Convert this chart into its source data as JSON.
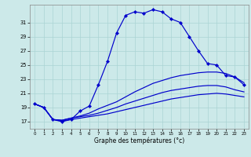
{
  "xlabel": "Graphe des températures (°c)",
  "background_color": "#cce9e9",
  "grid_color": "#aad4d4",
  "line_color": "#0000cc",
  "xlim": [
    -0.5,
    23.5
  ],
  "ylim": [
    16.0,
    33.5
  ],
  "yticks": [
    17,
    19,
    21,
    23,
    25,
    27,
    29,
    31
  ],
  "xticks": [
    0,
    1,
    2,
    3,
    4,
    5,
    6,
    7,
    8,
    9,
    10,
    11,
    12,
    13,
    14,
    15,
    16,
    17,
    18,
    19,
    20,
    21,
    22,
    23
  ],
  "line1_x": [
    0,
    1,
    2,
    3,
    4,
    5,
    6,
    7,
    8,
    9,
    10,
    11,
    12,
    13,
    14,
    15,
    16,
    17,
    18,
    19,
    20,
    21,
    22,
    23
  ],
  "line1_y": [
    19.5,
    19.0,
    17.3,
    17.0,
    17.3,
    18.5,
    19.2,
    22.2,
    25.5,
    29.5,
    32.0,
    32.5,
    32.3,
    32.8,
    32.5,
    31.5,
    31.0,
    29.0,
    27.0,
    25.2,
    25.0,
    23.5,
    23.3,
    22.2
  ],
  "line2_x": [
    0,
    1,
    2,
    3,
    4,
    5,
    6,
    7,
    8,
    9,
    10,
    11,
    12,
    13,
    14,
    15,
    16,
    17,
    18,
    19,
    20,
    21,
    22,
    23
  ],
  "line2_y": [
    19.5,
    19.0,
    17.3,
    17.2,
    17.5,
    17.8,
    18.2,
    18.8,
    19.3,
    19.8,
    20.5,
    21.2,
    21.8,
    22.4,
    22.8,
    23.2,
    23.5,
    23.7,
    23.9,
    24.0,
    24.0,
    23.8,
    23.3,
    22.5
  ],
  "line3_x": [
    0,
    1,
    2,
    3,
    4,
    5,
    6,
    7,
    8,
    9,
    10,
    11,
    12,
    13,
    14,
    15,
    16,
    17,
    18,
    19,
    20,
    21,
    22,
    23
  ],
  "line3_y": [
    19.5,
    19.0,
    17.3,
    17.2,
    17.5,
    17.7,
    17.9,
    18.2,
    18.6,
    19.0,
    19.5,
    19.9,
    20.3,
    20.7,
    21.1,
    21.4,
    21.6,
    21.8,
    22.0,
    22.1,
    22.1,
    21.9,
    21.5,
    21.2
  ],
  "line4_x": [
    0,
    1,
    2,
    3,
    4,
    5,
    6,
    7,
    8,
    9,
    10,
    11,
    12,
    13,
    14,
    15,
    16,
    17,
    18,
    19,
    20,
    21,
    22,
    23
  ],
  "line4_y": [
    19.5,
    19.0,
    17.3,
    17.1,
    17.3,
    17.5,
    17.7,
    17.9,
    18.1,
    18.4,
    18.7,
    19.0,
    19.3,
    19.6,
    19.9,
    20.2,
    20.4,
    20.6,
    20.8,
    20.9,
    21.0,
    20.9,
    20.7,
    20.5
  ]
}
